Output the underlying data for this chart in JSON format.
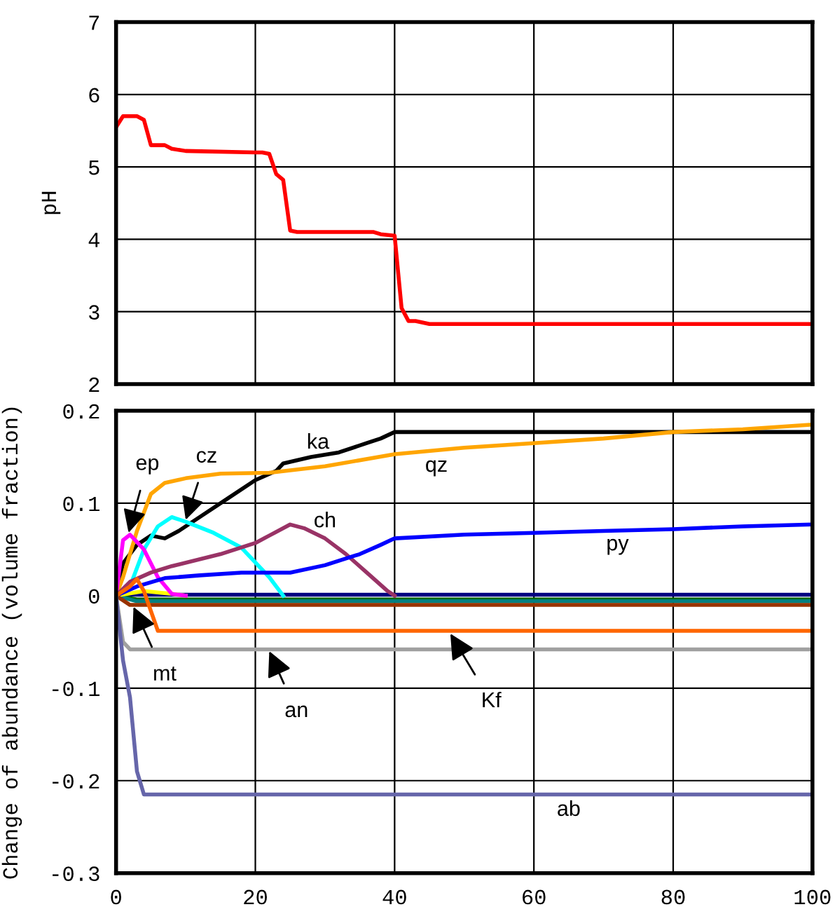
{
  "chart_data": [
    {
      "type": "line",
      "ylabel": "pH",
      "xlim": [
        0,
        100
      ],
      "xticks": [
        0,
        20,
        40,
        60,
        80,
        100
      ],
      "ylim": [
        2,
        7
      ],
      "yticks": [
        2,
        3,
        4,
        5,
        6,
        7
      ],
      "grid": true,
      "tick_labels": "y",
      "series": [
        {
          "color": "#ff0000",
          "x": [
            0,
            1,
            3,
            4,
            5,
            7,
            8,
            10,
            20,
            21,
            22,
            23,
            24,
            25,
            26,
            37,
            38,
            40,
            41,
            42,
            43,
            45,
            100
          ],
          "values": [
            5.55,
            5.7,
            5.7,
            5.65,
            5.3,
            5.3,
            5.25,
            5.22,
            5.2,
            5.2,
            5.18,
            4.9,
            4.82,
            4.12,
            4.1,
            4.1,
            4.07,
            4.05,
            3.05,
            2.87,
            2.87,
            2.83,
            2.83
          ]
        }
      ]
    },
    {
      "type": "line",
      "ylabel": "Change of abundance (volume fraction)",
      "xlim": [
        0,
        100
      ],
      "xticks": [
        0,
        20,
        40,
        60,
        80,
        100
      ],
      "ylim": [
        -0.3,
        0.2
      ],
      "yticks": [
        -0.3,
        -0.2,
        -0.1,
        0,
        0.1,
        0.2
      ],
      "grid": true,
      "annotations": [
        {
          "text": "mt",
          "x": 2.5,
          "y": -0.012
        },
        {
          "text": "an",
          "x": 22,
          "y": -0.06
        },
        {
          "text": "Kf",
          "x": 48,
          "y": -0.041
        }
      ],
      "series": [
        {
          "color": "#000080",
          "x": [
            0,
            100
          ],
          "values": [
            0.001,
            0.001
          ]
        },
        {
          "color": "#006600",
          "x": [
            0,
            3,
            100
          ],
          "values": [
            0,
            -0.004,
            -0.004
          ]
        },
        {
          "color": "#008080",
          "x": [
            0,
            3,
            100
          ],
          "values": [
            0,
            -0.006,
            -0.006
          ]
        },
        {
          "color": "#ffff00",
          "x": [
            0,
            4,
            8,
            10
          ],
          "values": [
            0,
            0.005,
            0.002,
            0
          ]
        },
        {
          "name": "ka",
          "color": "#000000",
          "x": [
            0,
            1,
            3,
            5,
            7,
            9,
            12,
            16,
            20,
            23,
            24,
            28,
            32,
            36,
            38,
            40,
            100
          ],
          "values": [
            0,
            0.035,
            0.055,
            0.065,
            0.062,
            0.07,
            0.085,
            0.105,
            0.125,
            0.135,
            0.143,
            0.15,
            0.155,
            0.165,
            0.17,
            0.177,
            0.177
          ]
        },
        {
          "name": "qz",
          "color": "#ffa500",
          "x": [
            0,
            1,
            3,
            5,
            7,
            10,
            15,
            22,
            30,
            40,
            50,
            60,
            70,
            80,
            90,
            100
          ],
          "values": [
            0,
            0.02,
            0.07,
            0.11,
            0.122,
            0.127,
            0.132,
            0.133,
            0.14,
            0.153,
            0.16,
            0.165,
            0.17,
            0.177,
            0.18,
            0.185
          ]
        },
        {
          "name": "cz",
          "color": "#00ffff",
          "x": [
            0,
            2,
            4,
            6,
            8,
            10,
            14,
            18,
            22,
            24
          ],
          "values": [
            0,
            0.01,
            0.05,
            0.075,
            0.085,
            0.08,
            0.068,
            0.052,
            0.02,
            0
          ]
        },
        {
          "name": "ep",
          "color": "#ff00ff",
          "x": [
            0,
            1,
            2,
            4,
            6,
            8,
            10
          ],
          "values": [
            0,
            0.06,
            0.066,
            0.05,
            0.02,
            0.002,
            0
          ]
        },
        {
          "name": "ch",
          "color": "#993366",
          "x": [
            0,
            2,
            5,
            8,
            15,
            20,
            22,
            25,
            27,
            30,
            33,
            36,
            39,
            40
          ],
          "values": [
            0,
            0.015,
            0.025,
            0.032,
            0.045,
            0.057,
            0.065,
            0.077,
            0.073,
            0.062,
            0.045,
            0.025,
            0.005,
            0
          ]
        },
        {
          "name": "py",
          "color": "#0000ff",
          "x": [
            0,
            3,
            7,
            12,
            18,
            25,
            30,
            35,
            38,
            40,
            50,
            60,
            70,
            80,
            90,
            100
          ],
          "values": [
            0,
            0.01,
            0.019,
            0.022,
            0.025,
            0.025,
            0.033,
            0.045,
            0.055,
            0.062,
            0.066,
            0.068,
            0.07,
            0.072,
            0.075,
            0.077
          ]
        },
        {
          "color": "#993300",
          "x": [
            0,
            2,
            5,
            100
          ],
          "values": [
            0,
            -0.01,
            -0.01,
            -0.01
          ]
        },
        {
          "color": "#a0a0a0",
          "x": [
            0,
            1,
            2,
            100
          ],
          "values": [
            0,
            -0.05,
            -0.058,
            -0.058
          ]
        },
        {
          "color": "#ff6600",
          "x": [
            0,
            2,
            3,
            4,
            6,
            100
          ],
          "values": [
            0,
            0.01,
            0.018,
            0.005,
            -0.038,
            -0.038
          ]
        },
        {
          "name": "ab",
          "color": "#6666aa",
          "x": [
            0,
            1,
            2,
            3,
            4,
            100
          ],
          "values": [
            0,
            -0.07,
            -0.11,
            -0.19,
            -0.215,
            -0.215
          ]
        }
      ]
    }
  ]
}
